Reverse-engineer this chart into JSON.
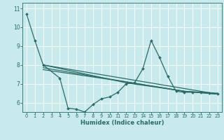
{
  "xlabel": "Humidex (Indice chaleur)",
  "bg_color": "#c8eaed",
  "grid_color": "#ffffff",
  "line_color": "#2a6b65",
  "xlim": [
    -0.5,
    23.5
  ],
  "ylim": [
    5.5,
    11.3
  ],
  "yticks": [
    6,
    7,
    8,
    9,
    10,
    11
  ],
  "xticks": [
    0,
    1,
    2,
    3,
    4,
    5,
    6,
    7,
    8,
    9,
    10,
    11,
    12,
    13,
    14,
    15,
    16,
    17,
    18,
    19,
    20,
    21,
    22,
    23
  ],
  "main_curve": {
    "x": [
      0,
      1,
      2,
      4,
      5,
      6,
      7,
      8,
      9,
      10,
      11,
      12,
      13,
      14,
      15,
      16,
      17,
      18,
      19,
      20,
      21,
      22,
      23
    ],
    "y": [
      10.7,
      9.3,
      8.0,
      7.3,
      5.7,
      5.65,
      5.5,
      5.9,
      6.2,
      6.3,
      6.55,
      7.0,
      7.05,
      7.8,
      9.3,
      8.4,
      7.4,
      6.6,
      6.55,
      6.55,
      6.55,
      6.5,
      6.45
    ]
  },
  "trend_lines": [
    {
      "x": [
        2,
        23
      ],
      "y": [
        8.0,
        6.45
      ]
    },
    {
      "x": [
        2,
        12,
        19,
        23
      ],
      "y": [
        8.0,
        7.05,
        6.6,
        6.45
      ]
    },
    {
      "x": [
        2,
        12,
        19,
        23
      ],
      "y": [
        7.85,
        7.1,
        6.6,
        6.45
      ]
    },
    {
      "x": [
        2,
        12,
        19,
        23
      ],
      "y": [
        7.75,
        7.1,
        6.6,
        6.5
      ]
    }
  ]
}
